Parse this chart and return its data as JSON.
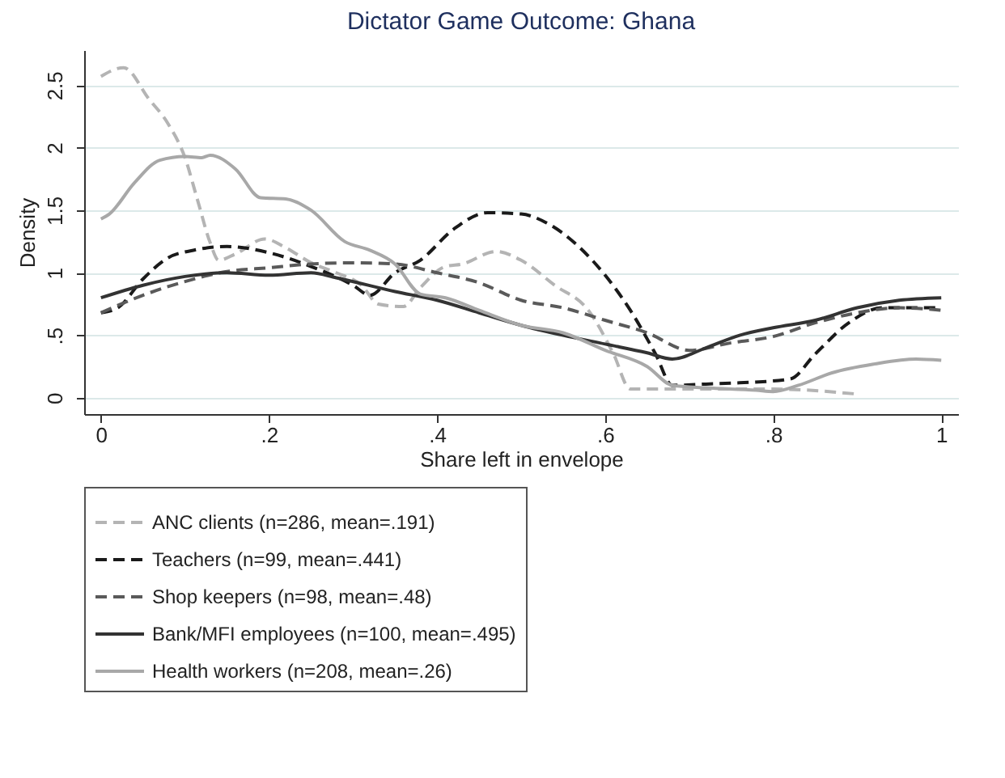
{
  "chart_data": {
    "type": "line",
    "title": "Dictator Game Outcome: Ghana",
    "xlabel": "Share left in envelope",
    "ylabel": "Density",
    "xlim": [
      -0.02,
      1.02
    ],
    "ylim": [
      -0.13,
      2.78
    ],
    "xticks": [
      {
        "value": 0,
        "label": "0"
      },
      {
        "value": 0.2,
        "label": ".2"
      },
      {
        "value": 0.4,
        "label": ".4"
      },
      {
        "value": 0.6,
        "label": ".6"
      },
      {
        "value": 0.8,
        "label": ".8"
      },
      {
        "value": 1,
        "label": "1"
      }
    ],
    "yticks": [
      {
        "value": 0,
        "label": "0"
      },
      {
        "value": 0.5,
        "label": ".5"
      },
      {
        "value": 1,
        "label": "1"
      },
      {
        "value": 1.5,
        "label": "1.5"
      },
      {
        "value": 2,
        "label": "2"
      },
      {
        "value": 2.5,
        "label": "2.5"
      }
    ],
    "grid": "y",
    "legend": "bottom",
    "marker": "none",
    "series": [
      {
        "name": "ANC clients (n=286, mean=.191)",
        "color": "#b4b4b4",
        "line_style": "dashed",
        "x": [
          0,
          0.027,
          0.057,
          0.08,
          0.1,
          0.115,
          0.13,
          0.14,
          0.16,
          0.195,
          0.22,
          0.25,
          0.28,
          0.31,
          0.33,
          0.36,
          0.38,
          0.41,
          0.43,
          0.47,
          0.5,
          0.54,
          0.58,
          0.61,
          0.63,
          0.7,
          0.8,
          0.9
        ],
        "values": [
          2.57,
          2.64,
          2.39,
          2.19,
          1.92,
          1.58,
          1.24,
          1.1,
          1.15,
          1.27,
          1.2,
          1.08,
          1.0,
          0.9,
          0.75,
          0.73,
          0.88,
          1.05,
          1.07,
          1.17,
          1.1,
          0.9,
          0.7,
          0.35,
          0.07,
          0.07,
          0.07,
          0.03
        ]
      },
      {
        "name": "Teachers (n=99, mean=.441)",
        "color": "#1a1a1a",
        "line_style": "dashed",
        "x": [
          0,
          0.02,
          0.05,
          0.08,
          0.11,
          0.15,
          0.2,
          0.25,
          0.3,
          0.32,
          0.35,
          0.38,
          0.42,
          0.46,
          0.5,
          0.53,
          0.57,
          0.6,
          0.63,
          0.66,
          0.68,
          0.72,
          0.76,
          0.82,
          0.85,
          0.89,
          0.93,
          1
        ],
        "values": [
          0.68,
          0.72,
          0.95,
          1.12,
          1.18,
          1.21,
          1.16,
          1.05,
          0.9,
          0.82,
          1.0,
          1.1,
          1.35,
          1.48,
          1.47,
          1.4,
          1.2,
          0.98,
          0.7,
          0.35,
          0.1,
          0.11,
          0.12,
          0.15,
          0.35,
          0.6,
          0.72,
          0.72
        ]
      },
      {
        "name": "Shop keepers (n=98, mean=.48)",
        "color": "#5a5a5a",
        "line_style": "dashed",
        "x": [
          0,
          0.05,
          0.1,
          0.15,
          0.2,
          0.25,
          0.3,
          0.35,
          0.4,
          0.45,
          0.5,
          0.55,
          0.6,
          0.65,
          0.7,
          0.75,
          0.8,
          0.85,
          0.9,
          0.95,
          1
        ],
        "values": [
          0.68,
          0.82,
          0.93,
          1.01,
          1.04,
          1.07,
          1.08,
          1.07,
          1.0,
          0.92,
          0.78,
          0.72,
          0.62,
          0.52,
          0.38,
          0.44,
          0.49,
          0.6,
          0.68,
          0.72,
          0.7
        ]
      },
      {
        "name": "Bank/MFI employees (n=100, mean=.495)",
        "color": "#333333",
        "line_style": "solid",
        "x": [
          0,
          0.05,
          0.1,
          0.15,
          0.2,
          0.25,
          0.28,
          0.35,
          0.4,
          0.45,
          0.5,
          0.55,
          0.6,
          0.65,
          0.68,
          0.72,
          0.76,
          0.8,
          0.85,
          0.9,
          0.95,
          1
        ],
        "values": [
          0.8,
          0.9,
          0.97,
          1.0,
          0.98,
          1.0,
          0.96,
          0.85,
          0.78,
          0.68,
          0.58,
          0.5,
          0.43,
          0.36,
          0.31,
          0.4,
          0.5,
          0.56,
          0.62,
          0.72,
          0.78,
          0.8
        ]
      },
      {
        "name": "Health workers (n=208, mean=.26)",
        "color": "#a8a8a8",
        "line_style": "solid",
        "x": [
          0,
          0.01,
          0.04,
          0.07,
          0.1,
          0.12,
          0.13,
          0.16,
          0.19,
          0.22,
          0.25,
          0.29,
          0.32,
          0.35,
          0.38,
          0.41,
          0.45,
          0.5,
          0.55,
          0.6,
          0.65,
          0.68,
          0.72,
          0.78,
          0.8,
          0.83,
          0.87,
          0.92,
          0.97,
          1
        ],
        "values": [
          1.43,
          1.47,
          1.72,
          1.9,
          1.93,
          1.92,
          1.94,
          1.83,
          1.6,
          1.59,
          1.5,
          1.25,
          1.18,
          1.07,
          0.83,
          0.8,
          0.7,
          0.58,
          0.52,
          0.38,
          0.25,
          0.1,
          0.08,
          0.06,
          0.05,
          0.1,
          0.2,
          0.27,
          0.31,
          0.3
        ]
      }
    ]
  }
}
